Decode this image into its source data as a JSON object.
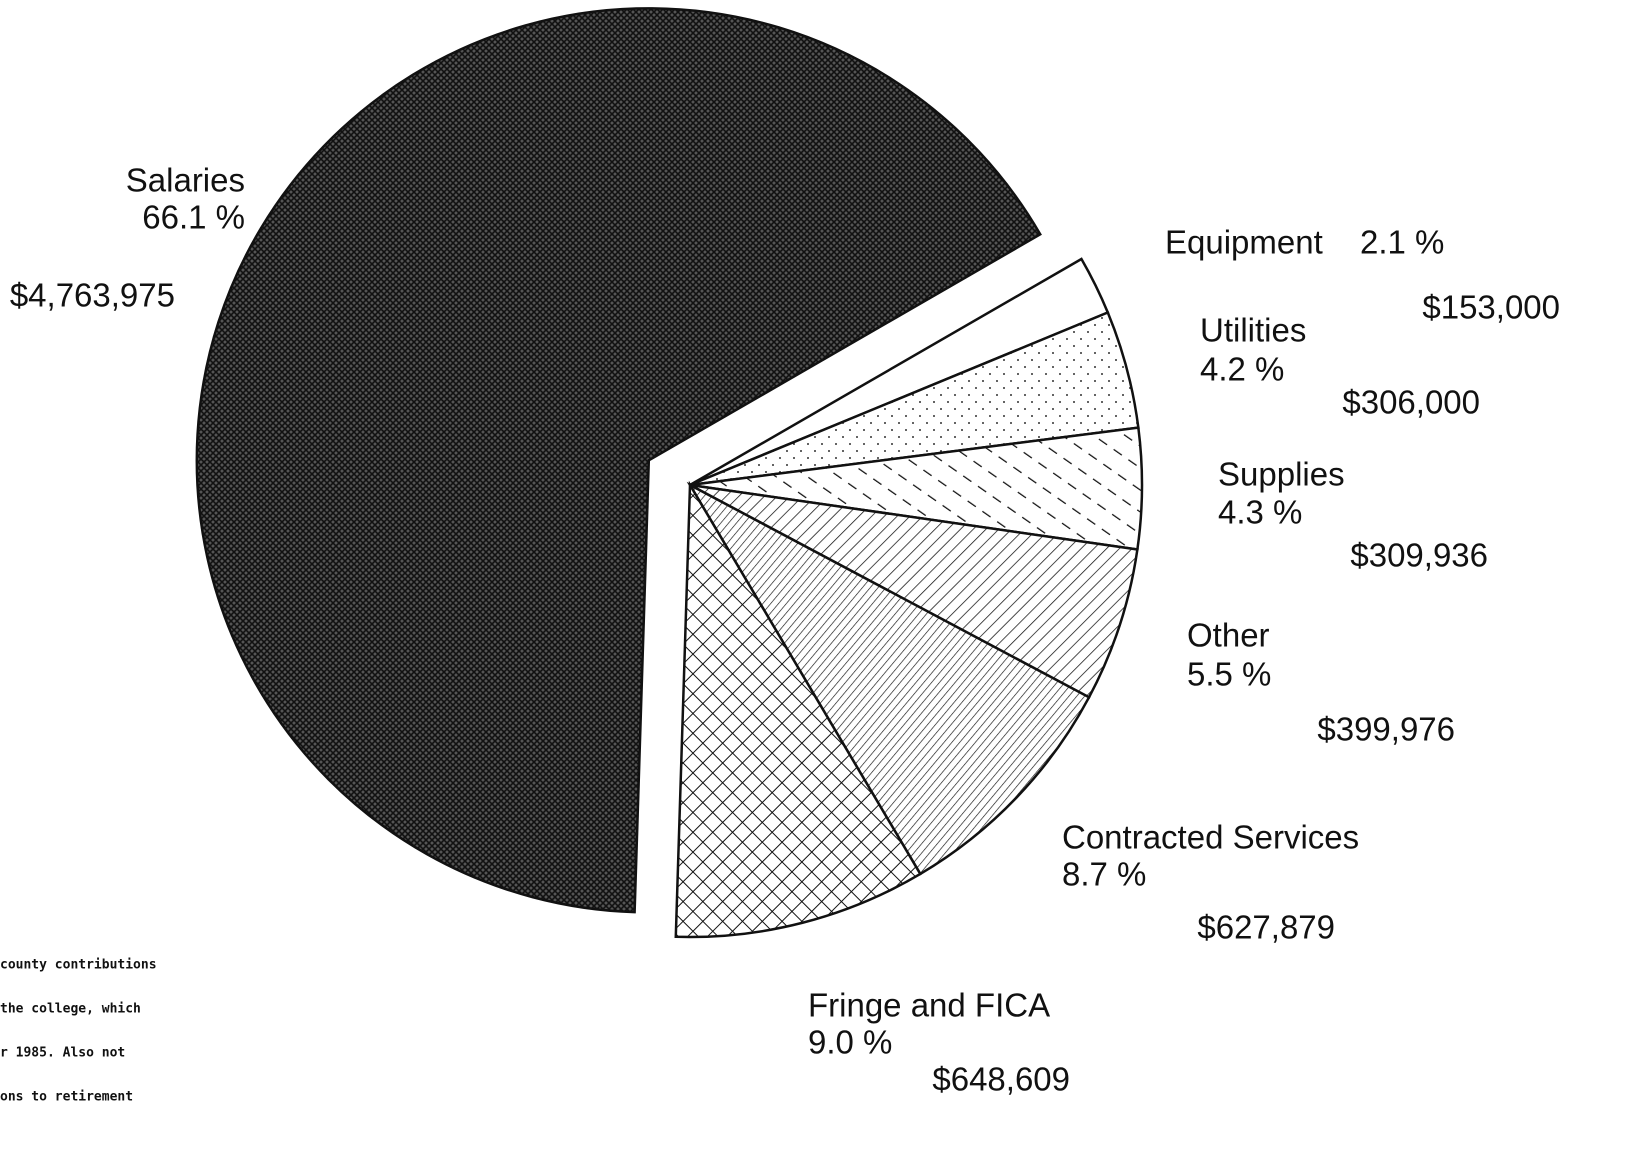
{
  "chart_data": {
    "type": "pie",
    "categories": [
      "Salaries",
      "Equipment",
      "Utilities",
      "Supplies",
      "Other",
      "Contracted Services",
      "Fringe and FICA"
    ],
    "values": [
      66.1,
      2.1,
      4.2,
      4.3,
      5.5,
      8.7,
      9.0
    ],
    "value_labels": [
      "66.1 %",
      "2.1 %",
      "4.2 %",
      "4.3 %",
      "5.5 %",
      "8.7 %",
      "9.0 %"
    ],
    "amount_labels": [
      "$4,763,975",
      "$153,000",
      "$306,000",
      "$309,936",
      "$399,976",
      "$627,879",
      "$648,609"
    ],
    "notes": [
      "county contributions",
      "the college, which",
      "r 1985.  Also not",
      "ons to retirement"
    ]
  }
}
